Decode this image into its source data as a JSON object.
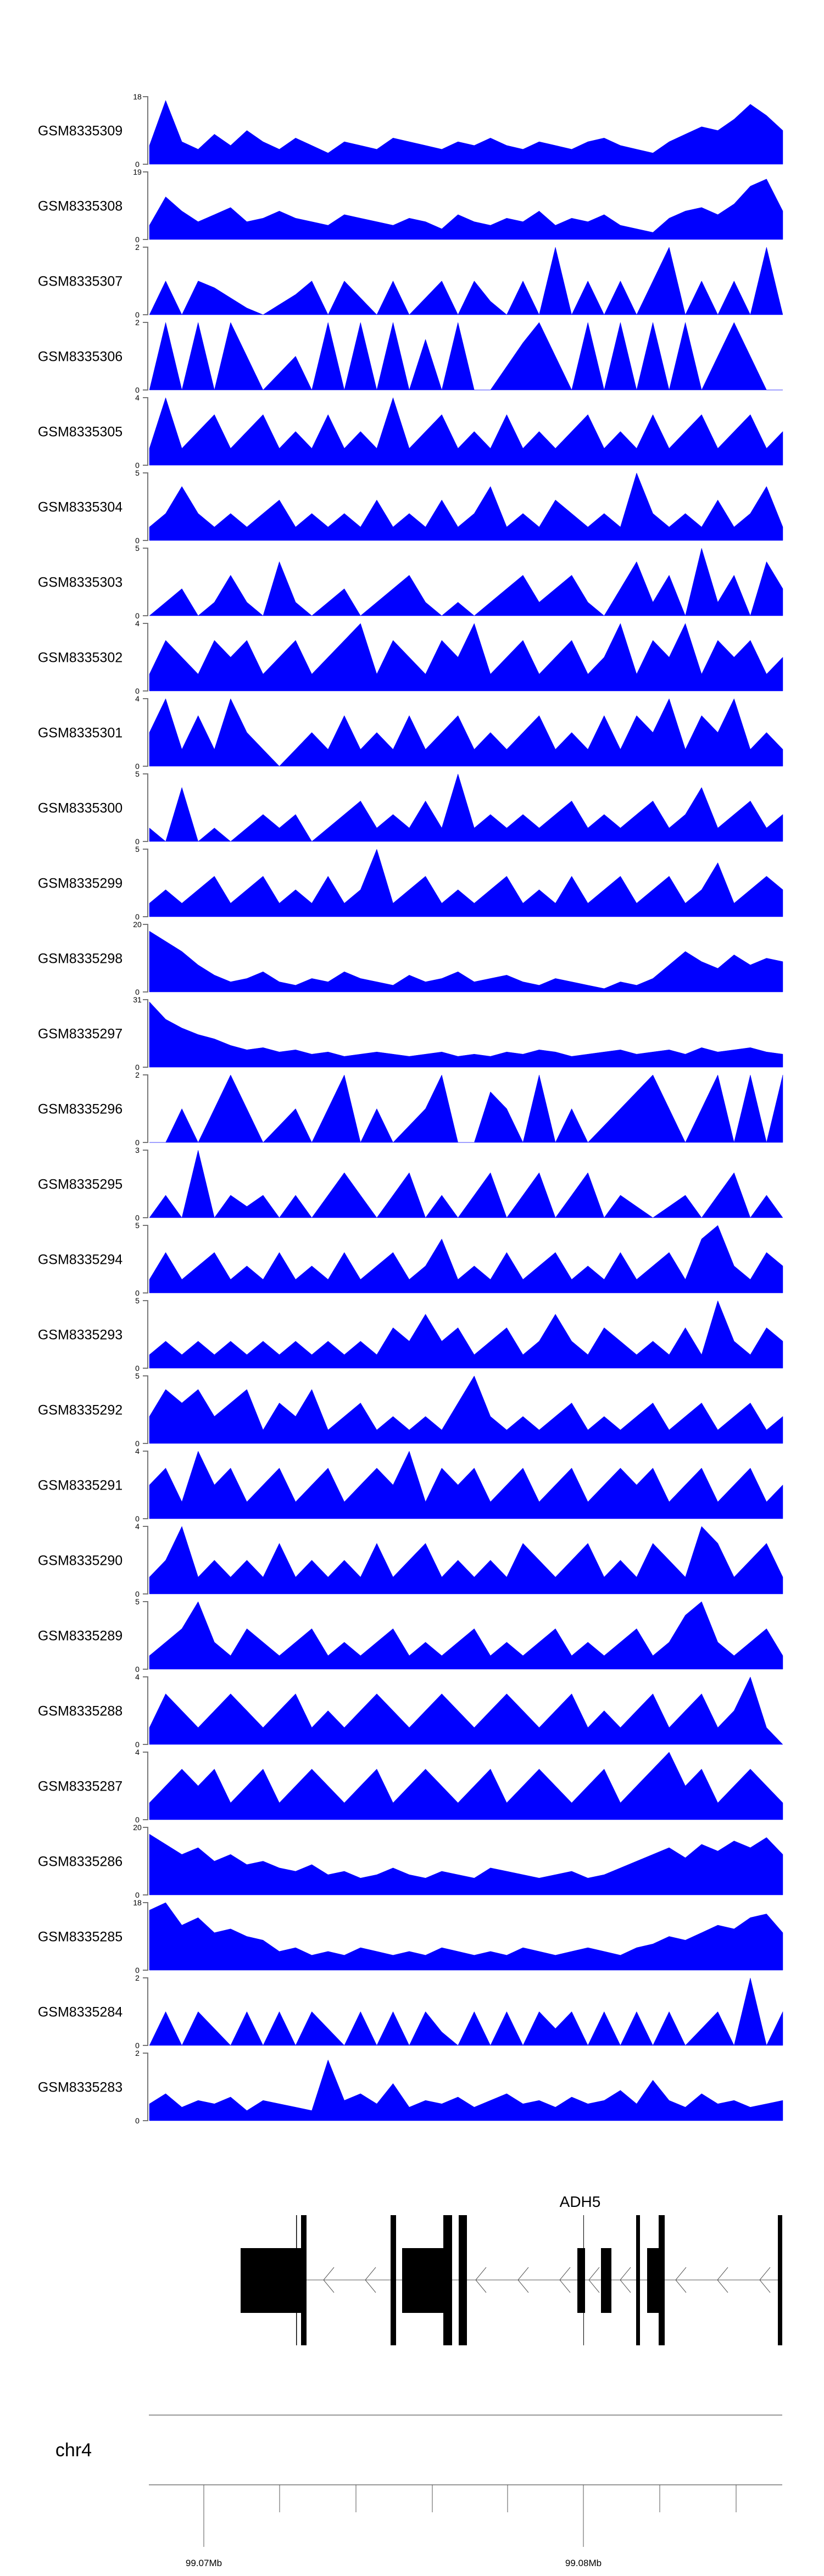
{
  "chart_data": {
    "type": "area",
    "title": "",
    "fill_color": "#0000FF",
    "tracks": [
      {
        "name": "GSM8335309",
        "ymax": 18,
        "values": [
          5,
          17,
          6,
          4,
          8,
          5,
          9,
          6,
          4,
          7,
          5,
          3,
          6,
          5,
          4,
          7,
          6,
          5,
          4,
          6,
          5,
          7,
          5,
          4,
          6,
          5,
          4,
          6,
          7,
          5,
          4,
          3,
          6,
          8,
          10,
          9,
          12,
          16,
          13,
          9
        ]
      },
      {
        "name": "GSM8335308",
        "ymax": 19,
        "values": [
          4,
          12,
          8,
          5,
          7,
          9,
          5,
          6,
          8,
          6,
          5,
          4,
          7,
          6,
          5,
          4,
          6,
          5,
          3,
          7,
          5,
          4,
          6,
          5,
          8,
          4,
          6,
          5,
          7,
          4,
          3,
          2,
          6,
          8,
          9,
          7,
          10,
          15,
          17,
          8
        ]
      },
      {
        "name": "GSM8335307",
        "ymax": 2,
        "values": [
          0,
          1,
          0,
          1,
          0.8,
          0.5,
          0.2,
          0,
          0.3,
          0.6,
          1,
          0,
          1,
          0.5,
          0,
          1,
          0,
          0.5,
          1,
          0,
          1,
          0.4,
          0,
          1,
          0,
          2,
          0,
          1,
          0,
          1,
          0,
          1,
          2,
          0,
          1,
          0,
          1,
          0,
          2,
          0
        ]
      },
      {
        "name": "GSM8335306",
        "ymax": 2,
        "values": [
          0,
          2,
          0,
          2,
          0,
          2,
          1,
          0,
          0.5,
          1,
          0,
          2,
          0,
          2,
          0,
          2,
          0,
          1.5,
          0,
          2,
          0,
          0,
          0.7,
          1.4,
          2,
          1,
          0,
          2,
          0,
          2,
          0,
          2,
          0,
          2,
          0,
          1,
          2,
          1,
          0,
          0
        ]
      },
      {
        "name": "GSM8335305",
        "ymax": 4,
        "values": [
          1,
          4,
          1,
          2,
          3,
          1,
          2,
          3,
          1,
          2,
          1,
          3,
          1,
          2,
          1,
          4,
          1,
          2,
          3,
          1,
          2,
          1,
          3,
          1,
          2,
          1,
          2,
          3,
          1,
          2,
          1,
          3,
          1,
          2,
          3,
          1,
          2,
          3,
          1,
          2
        ]
      },
      {
        "name": "GSM8335304",
        "ymax": 5,
        "values": [
          1,
          2,
          4,
          2,
          1,
          2,
          1,
          2,
          3,
          1,
          2,
          1,
          2,
          1,
          3,
          1,
          2,
          1,
          3,
          1,
          2,
          4,
          1,
          2,
          1,
          3,
          2,
          1,
          2,
          1,
          5,
          2,
          1,
          2,
          1,
          3,
          1,
          2,
          4,
          1
        ]
      },
      {
        "name": "GSM8335303",
        "ymax": 5,
        "values": [
          0,
          1,
          2,
          0,
          1,
          3,
          1,
          0,
          4,
          1,
          0,
          1,
          2,
          0,
          1,
          2,
          3,
          1,
          0,
          1,
          0,
          1,
          2,
          3,
          1,
          2,
          3,
          1,
          0,
          2,
          4,
          1,
          3,
          0,
          5,
          1,
          3,
          0,
          4,
          2
        ]
      },
      {
        "name": "GSM8335302",
        "ymax": 4,
        "values": [
          1,
          3,
          2,
          1,
          3,
          2,
          3,
          1,
          2,
          3,
          1,
          2,
          3,
          4,
          1,
          3,
          2,
          1,
          3,
          2,
          4,
          1,
          2,
          3,
          1,
          2,
          3,
          1,
          2,
          4,
          1,
          3,
          2,
          4,
          1,
          3,
          2,
          3,
          1,
          2
        ]
      },
      {
        "name": "GSM8335301",
        "ymax": 4,
        "values": [
          2,
          4,
          1,
          3,
          1,
          4,
          2,
          1,
          0,
          1,
          2,
          1,
          3,
          1,
          2,
          1,
          3,
          1,
          2,
          3,
          1,
          2,
          1,
          2,
          3,
          1,
          2,
          1,
          3,
          1,
          3,
          2,
          4,
          1,
          3,
          2,
          4,
          1,
          2,
          1
        ]
      },
      {
        "name": "GSM8335300",
        "ymax": 5,
        "values": [
          1,
          0,
          4,
          0,
          1,
          0,
          1,
          2,
          1,
          2,
          0,
          1,
          2,
          3,
          1,
          2,
          1,
          3,
          1,
          5,
          1,
          2,
          1,
          2,
          1,
          2,
          3,
          1,
          2,
          1,
          2,
          3,
          1,
          2,
          4,
          1,
          2,
          3,
          1,
          2
        ]
      },
      {
        "name": "GSM8335299",
        "ymax": 5,
        "values": [
          1,
          2,
          1,
          2,
          3,
          1,
          2,
          3,
          1,
          2,
          1,
          3,
          1,
          2,
          5,
          1,
          2,
          3,
          1,
          2,
          1,
          2,
          3,
          1,
          2,
          1,
          3,
          1,
          2,
          3,
          1,
          2,
          3,
          1,
          2,
          4,
          1,
          2,
          3,
          2
        ]
      },
      {
        "name": "GSM8335298",
        "ymax": 20,
        "values": [
          18,
          15,
          12,
          8,
          5,
          3,
          4,
          6,
          3,
          2,
          4,
          3,
          6,
          4,
          3,
          2,
          5,
          3,
          4,
          6,
          3,
          4,
          5,
          3,
          2,
          4,
          3,
          2,
          1,
          3,
          2,
          4,
          8,
          12,
          9,
          7,
          11,
          8,
          10,
          9
        ]
      },
      {
        "name": "GSM8335297",
        "ymax": 31,
        "values": [
          30,
          22,
          18,
          15,
          13,
          10,
          8,
          9,
          7,
          8,
          6,
          7,
          5,
          6,
          7,
          6,
          5,
          6,
          7,
          5,
          6,
          5,
          7,
          6,
          8,
          7,
          5,
          6,
          7,
          8,
          6,
          7,
          8,
          6,
          9,
          7,
          8,
          9,
          7,
          6
        ]
      },
      {
        "name": "GSM8335296",
        "ymax": 2,
        "values": [
          0,
          0,
          1,
          0,
          1,
          2,
          1,
          0,
          0.5,
          1,
          0,
          1,
          2,
          0,
          1,
          0,
          0.5,
          1,
          2,
          0,
          0,
          1.5,
          1,
          0,
          2,
          0,
          1,
          0,
          0.5,
          1,
          1.5,
          2,
          1,
          0,
          1,
          2,
          0,
          2,
          0,
          2
        ]
      },
      {
        "name": "GSM8335295",
        "ymax": 3,
        "values": [
          0,
          1,
          0,
          3,
          0,
          1,
          0.5,
          1,
          0,
          1,
          0,
          1,
          2,
          1,
          0,
          1,
          2,
          0,
          1,
          0,
          1,
          2,
          0,
          1,
          2,
          0,
          1,
          2,
          0,
          1,
          0.5,
          0,
          0.5,
          1,
          0,
          1,
          2,
          0,
          1,
          0
        ]
      },
      {
        "name": "GSM8335294",
        "ymax": 5,
        "values": [
          1,
          3,
          1,
          2,
          3,
          1,
          2,
          1,
          3,
          1,
          2,
          1,
          3,
          1,
          2,
          3,
          1,
          2,
          4,
          1,
          2,
          1,
          3,
          1,
          2,
          3,
          1,
          2,
          1,
          3,
          1,
          2,
          3,
          1,
          4,
          5,
          2,
          1,
          3,
          2
        ]
      },
      {
        "name": "GSM8335293",
        "ymax": 5,
        "values": [
          1,
          2,
          1,
          2,
          1,
          2,
          1,
          2,
          1,
          2,
          1,
          2,
          1,
          2,
          1,
          3,
          2,
          4,
          2,
          3,
          1,
          2,
          3,
          1,
          2,
          4,
          2,
          1,
          3,
          2,
          1,
          2,
          1,
          3,
          1,
          5,
          2,
          1,
          3,
          2
        ]
      },
      {
        "name": "GSM8335292",
        "ymax": 5,
        "values": [
          2,
          4,
          3,
          4,
          2,
          3,
          4,
          1,
          3,
          2,
          4,
          1,
          2,
          3,
          1,
          2,
          1,
          2,
          1,
          3,
          5,
          2,
          1,
          2,
          1,
          2,
          3,
          1,
          2,
          1,
          2,
          3,
          1,
          2,
          3,
          1,
          2,
          3,
          1,
          2
        ]
      },
      {
        "name": "GSM8335291",
        "ymax": 4,
        "values": [
          2,
          3,
          1,
          4,
          2,
          3,
          1,
          2,
          3,
          1,
          2,
          3,
          1,
          2,
          3,
          2,
          4,
          1,
          3,
          2,
          3,
          1,
          2,
          3,
          1,
          2,
          3,
          1,
          2,
          3,
          2,
          3,
          1,
          2,
          3,
          1,
          2,
          3,
          1,
          2
        ]
      },
      {
        "name": "GSM8335290",
        "ymax": 4,
        "values": [
          1,
          2,
          4,
          1,
          2,
          1,
          2,
          1,
          3,
          1,
          2,
          1,
          2,
          1,
          3,
          1,
          2,
          3,
          1,
          2,
          1,
          2,
          1,
          3,
          2,
          1,
          2,
          3,
          1,
          2,
          1,
          3,
          2,
          1,
          4,
          3,
          1,
          2,
          3,
          1
        ]
      },
      {
        "name": "GSM8335289",
        "ymax": 5,
        "values": [
          1,
          2,
          3,
          5,
          2,
          1,
          3,
          2,
          1,
          2,
          3,
          1,
          2,
          1,
          2,
          3,
          1,
          2,
          1,
          2,
          3,
          1,
          2,
          1,
          2,
          3,
          1,
          2,
          1,
          2,
          3,
          1,
          2,
          4,
          5,
          2,
          1,
          2,
          3,
          1
        ]
      },
      {
        "name": "GSM8335288",
        "ymax": 4,
        "values": [
          1,
          3,
          2,
          1,
          2,
          3,
          2,
          1,
          2,
          3,
          1,
          2,
          1,
          2,
          3,
          2,
          1,
          2,
          3,
          2,
          1,
          2,
          3,
          2,
          1,
          2,
          3,
          1,
          2,
          1,
          2,
          3,
          1,
          2,
          3,
          1,
          2,
          4,
          1,
          0
        ]
      },
      {
        "name": "GSM8335287",
        "ymax": 4,
        "values": [
          1,
          2,
          3,
          2,
          3,
          1,
          2,
          3,
          1,
          2,
          3,
          2,
          1,
          2,
          3,
          1,
          2,
          3,
          2,
          1,
          2,
          3,
          1,
          2,
          3,
          2,
          1,
          2,
          3,
          1,
          2,
          3,
          4,
          2,
          3,
          1,
          2,
          3,
          2,
          1
        ]
      },
      {
        "name": "GSM8335286",
        "ymax": 20,
        "values": [
          18,
          15,
          12,
          14,
          10,
          12,
          9,
          10,
          8,
          7,
          9,
          6,
          7,
          5,
          6,
          8,
          6,
          5,
          7,
          6,
          5,
          8,
          7,
          6,
          5,
          6,
          7,
          5,
          6,
          8,
          10,
          12,
          14,
          11,
          15,
          13,
          16,
          14,
          17,
          12
        ]
      },
      {
        "name": "GSM8335285",
        "ymax": 18,
        "values": [
          16,
          18,
          12,
          14,
          10,
          11,
          9,
          8,
          5,
          6,
          4,
          5,
          4,
          6,
          5,
          4,
          5,
          4,
          6,
          5,
          4,
          5,
          4,
          6,
          5,
          4,
          5,
          6,
          5,
          4,
          6,
          7,
          9,
          8,
          10,
          12,
          11,
          14,
          15,
          10
        ]
      },
      {
        "name": "GSM8335284",
        "ymax": 2,
        "values": [
          0,
          1,
          0,
          1,
          0.5,
          0,
          1,
          0,
          1,
          0,
          1,
          0.5,
          0,
          1,
          0,
          1,
          0,
          1,
          0.4,
          0,
          1,
          0,
          1,
          0,
          1,
          0.5,
          1,
          0,
          1,
          0,
          1,
          0,
          1,
          0,
          0.5,
          1,
          0,
          2,
          0,
          1
        ]
      },
      {
        "name": "GSM8335283",
        "ymax": 2,
        "values": [
          0.5,
          0.8,
          0.4,
          0.6,
          0.5,
          0.7,
          0.3,
          0.6,
          0.5,
          0.4,
          0.3,
          1.8,
          0.6,
          0.8,
          0.5,
          1.1,
          0.4,
          0.6,
          0.5,
          0.7,
          0.4,
          0.6,
          0.8,
          0.5,
          0.6,
          0.4,
          0.7,
          0.5,
          0.6,
          0.9,
          0.5,
          1.2,
          0.6,
          0.4,
          0.8,
          0.5,
          0.6,
          0.4,
          0.5,
          0.6
        ]
      }
    ],
    "gene": {
      "name": "ADH5",
      "strand": "-",
      "color": "#000000"
    },
    "genome_axis": {
      "chromosome": "chr4",
      "range_mb": [
        99.0685,
        99.0815
      ],
      "major_ticks": [
        {
          "value": 99.07,
          "label": "99.07Mb"
        },
        {
          "value": 99.08,
          "label": "99.08Mb"
        }
      ],
      "minor_tick_step_mb": 0.002
    }
  }
}
